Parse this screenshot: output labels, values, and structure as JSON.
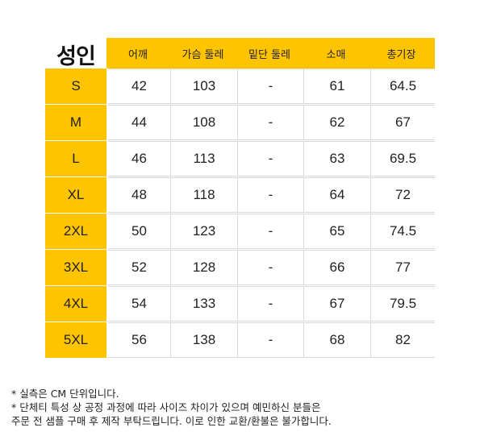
{
  "table": {
    "title": "성인",
    "columns": [
      "어깨",
      "가슴 둘레",
      "밑단 둘레",
      "소매",
      "총기장"
    ],
    "rows": [
      {
        "size": "S",
        "values": [
          "42",
          "103",
          "-",
          "61",
          "64.5"
        ]
      },
      {
        "size": "M",
        "values": [
          "44",
          "108",
          "-",
          "62",
          "67"
        ]
      },
      {
        "size": "L",
        "values": [
          "46",
          "113",
          "-",
          "63",
          "69.5"
        ]
      },
      {
        "size": "XL",
        "values": [
          "48",
          "118",
          "-",
          "64",
          "72"
        ]
      },
      {
        "size": "2XL",
        "values": [
          "50",
          "123",
          "-",
          "65",
          "74.5"
        ]
      },
      {
        "size": "3XL",
        "values": [
          "52",
          "128",
          "-",
          "66",
          "77"
        ]
      },
      {
        "size": "4XL",
        "values": [
          "54",
          "133",
          "-",
          "67",
          "79.5"
        ]
      },
      {
        "size": "5XL",
        "values": [
          "56",
          "138",
          "-",
          "68",
          "82"
        ]
      }
    ]
  },
  "notes": [
    "* 실측은 CM 단위입니다.",
    "* 단체티 특성 상 공정 과정에 따라 사이즈 차이가 있으며 예민하신 분들은",
    "주문 전 샘플 구매 후 제작 부탁드립니다. 이로 인한 교환/환불은 불가합니다."
  ],
  "colors": {
    "accent": "#ffc400",
    "border": "#d9d9d9",
    "text": "#222222"
  }
}
